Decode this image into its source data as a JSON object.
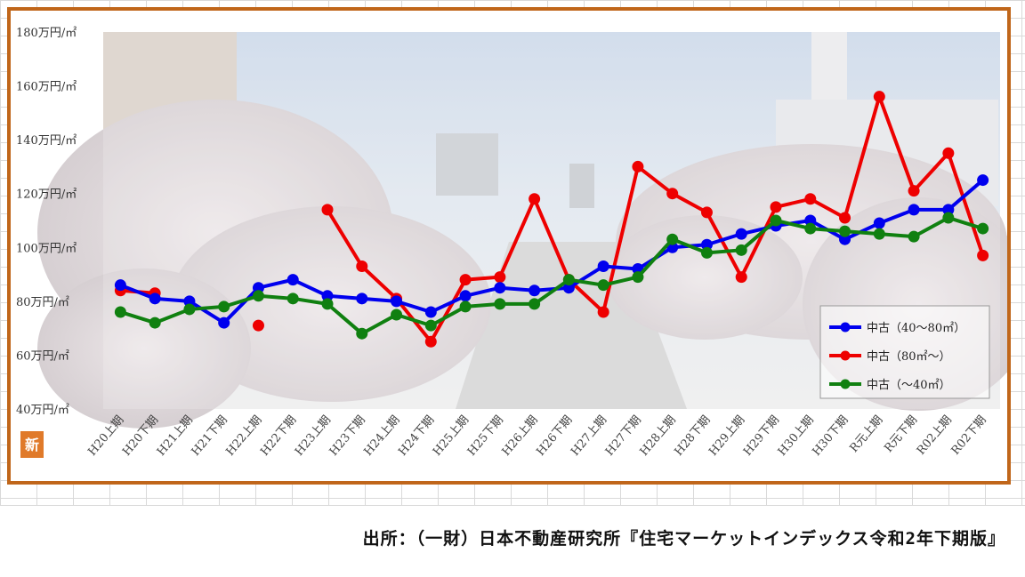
{
  "chart_data": {
    "type": "line",
    "categories": [
      "H20上期",
      "H20下期",
      "H21上期",
      "H21下期",
      "H22上期",
      "H22下期",
      "H23上期",
      "H23下期",
      "H24上期",
      "H24下期",
      "H25上期",
      "H25下期",
      "H26上期",
      "H26下期",
      "H27上期",
      "H27下期",
      "H28上期",
      "H28下期",
      "H29上期",
      "H29下期",
      "H30上期",
      "H30下期",
      "R元上期",
      "R元下期",
      "R02上期",
      "R02下期"
    ],
    "series": [
      {
        "name": "中古（40～80㎡）",
        "color": "#0000ee",
        "values": [
          86,
          81,
          80,
          72,
          85,
          88,
          82,
          81,
          80,
          76,
          82,
          85,
          84,
          85,
          93,
          92,
          100,
          101,
          105,
          108,
          110,
          103,
          109,
          114,
          114,
          125
        ]
      },
      {
        "name": "中古（80㎡～）",
        "color": "#ee0000",
        "values": [
          84,
          83,
          null,
          null,
          71,
          null,
          114,
          93,
          81,
          65,
          88,
          89,
          118,
          88,
          76,
          130,
          120,
          113,
          89,
          115,
          118,
          111,
          156,
          121,
          135,
          97
        ]
      },
      {
        "name": "中古（～40㎡）",
        "color": "#108010",
        "values": [
          76,
          72,
          77,
          78,
          82,
          81,
          79,
          68,
          75,
          71,
          78,
          79,
          79,
          88,
          86,
          89,
          103,
          98,
          99,
          110,
          107,
          106,
          105,
          104,
          111,
          107
        ]
      }
    ],
    "ylim": [
      40,
      180
    ],
    "yticks": [
      40,
      60,
      80,
      100,
      120,
      140,
      160,
      180
    ],
    "ytick_labels": [
      "40万円/㎡",
      "60万円/㎡",
      "80万円/㎡",
      "100万円/㎡",
      "120万円/㎡",
      "140万円/㎡",
      "160万円/㎡",
      "180万円/㎡"
    ],
    "legend_position": "bottom-right",
    "grid": false
  },
  "badge": {
    "text": "新",
    "color": "#e07a2a"
  },
  "colors": {
    "frame": "#c0661a"
  },
  "source": {
    "text": "出所：（一財）日本不動産研究所『住宅マーケットインデックス令和2年下期版』"
  }
}
